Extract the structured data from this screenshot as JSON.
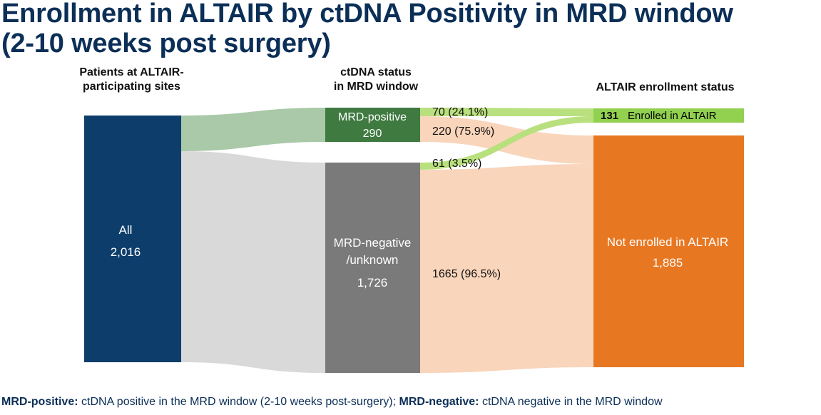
{
  "title_line1": "Enrollment in ALTAIR by ctDNA Positivity in MRD window",
  "title_line2": "(2-10 weeks post surgery)",
  "columns": {
    "col1": [
      "Patients at ALTAIR-",
      "participating sites"
    ],
    "col2": [
      "ctDNA status",
      "in MRD window"
    ],
    "col3": [
      "ALTAIR enrollment status"
    ]
  },
  "nodes": {
    "all": {
      "label": "All",
      "value": "2,016",
      "color": "#0d3d6b"
    },
    "mrd_positive": {
      "label": "MRD-positive",
      "value": "290",
      "color": "#3f7a41"
    },
    "mrd_negative": {
      "label1": "MRD-negative",
      "label2": "/unknown",
      "value": "1,726",
      "color": "#7a7a7a"
    },
    "enrolled": {
      "value": "131",
      "label": "Enrolled in ALTAIR",
      "color": "#92d050"
    },
    "not_enrolled": {
      "label": "Not enrolled in ALTAIR",
      "value": "1,885",
      "color": "#e87722"
    }
  },
  "flow_labels": {
    "pos_enrolled": "70 (24.1%)",
    "pos_not": "220 (75.9%)",
    "neg_enrolled": "61 (3.5%)",
    "neg_not": "1665 (96.5%)"
  },
  "flow_colors": {
    "to_positive": "#a9c9a8",
    "to_negative": "#d9d9d9",
    "to_enrolled": "#b9e07e",
    "to_not_enrolled": "#f8d0b4"
  },
  "footnote": {
    "term1": "MRD-positive:",
    "def1": " ctDNA positive in the MRD window (2-10 weeks post-surgery); ",
    "term2": "MRD-negative:",
    "def2": " ctDNA negative in the MRD window"
  }
}
